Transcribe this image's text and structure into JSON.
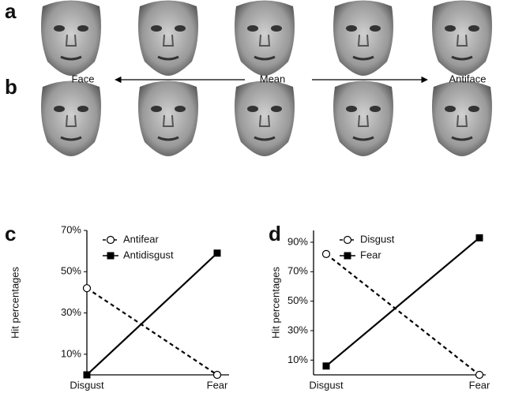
{
  "panel_labels": [
    "a",
    "b",
    "c",
    "d"
  ],
  "face_axis": {
    "left": "Face",
    "center": "Mean",
    "right": "Antiface"
  },
  "chart_data": [
    {
      "type": "line",
      "ylabel": "Hit percentages",
      "categories": [
        "Disgust",
        "Fear"
      ],
      "ylim": [
        0,
        70
      ],
      "yticks": [
        {
          "value": 10,
          "label": "10%"
        },
        {
          "value": 30,
          "label": "30%"
        },
        {
          "value": 50,
          "label": "50%"
        },
        {
          "value": 70,
          "label": "70%"
        }
      ],
      "series": [
        {
          "name": "Antifear",
          "color": "#000000",
          "dashed": true,
          "marker": "circle",
          "values": [
            42,
            0
          ]
        },
        {
          "name": "Antidisgust",
          "color": "#000000",
          "dashed": false,
          "marker": "square",
          "values": [
            0,
            59
          ]
        }
      ]
    },
    {
      "type": "line",
      "ylabel": "Hit percentages",
      "categories": [
        "Disgust",
        "Fear"
      ],
      "ylim": [
        0,
        98
      ],
      "yticks": [
        {
          "value": 10,
          "label": "10%"
        },
        {
          "value": 30,
          "label": "30%"
        },
        {
          "value": 50,
          "label": "50%"
        },
        {
          "value": 70,
          "label": "70%"
        },
        {
          "value": 90,
          "label": "90%"
        }
      ],
      "series": [
        {
          "name": "Disgust",
          "color": "#000000",
          "dashed": true,
          "marker": "circle",
          "values": [
            82,
            0
          ]
        },
        {
          "name": "Fear",
          "color": "#000000",
          "dashed": false,
          "marker": "square",
          "values": [
            6,
            93
          ]
        }
      ]
    }
  ]
}
